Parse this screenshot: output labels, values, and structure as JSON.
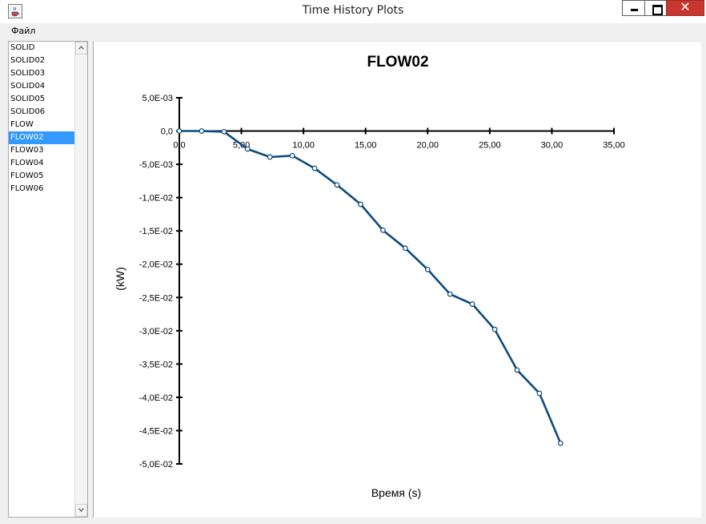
{
  "window": {
    "title": "Time History Plots",
    "icon": "java-cup-icon"
  },
  "menu": {
    "items": [
      {
        "label": "Файл"
      }
    ]
  },
  "list": {
    "items": [
      "SOLID",
      "SOLID02",
      "SOLID03",
      "SOLID04",
      "SOLID05",
      "SOLID06",
      "FLOW",
      "FLOW02",
      "FLOW03",
      "FLOW04",
      "FLOW05",
      "FLOW06"
    ],
    "selected": "FLOW02"
  },
  "colors": {
    "selection": "#3399ff",
    "series_line": "#0d4a7e",
    "close_button": "#c7372f"
  },
  "chart_data": {
    "type": "line",
    "title": "FLOW02",
    "xlabel": "Время (s)",
    "ylabel": "(kW)",
    "xlim": [
      0,
      35
    ],
    "ylim": [
      -0.05,
      0.005
    ],
    "x_ticks": [
      "0,0",
      "5,00",
      "10,00",
      "15,00",
      "20,00",
      "25,00",
      "30,00",
      "35,00"
    ],
    "x_tick_values": [
      0,
      5,
      10,
      15,
      20,
      25,
      30,
      35
    ],
    "y_ticks": [
      "5,0E-03",
      "0,0",
      "-5,0E-03",
      "-1,0E-02",
      "-1,5E-02",
      "-2,0E-02",
      "-2,5E-02",
      "-3,0E-02",
      "-3,5E-02",
      "-4,0E-02",
      "-4,5E-02",
      "-5,0E-02"
    ],
    "y_tick_values": [
      0.005,
      0,
      -0.005,
      -0.01,
      -0.015,
      -0.02,
      -0.025,
      -0.03,
      -0.035,
      -0.04,
      -0.045,
      -0.05
    ],
    "grid": false,
    "markers": "open-circle",
    "series": [
      {
        "x": [
          0,
          1.8,
          3.6,
          5.5,
          7.3,
          9.1,
          10.9,
          12.7,
          14.6,
          16.4,
          18.2,
          20.0,
          21.8,
          23.6,
          25.4,
          27.2,
          29.0,
          30.7
        ],
        "y": [
          0,
          0,
          -0.0001,
          -0.0027,
          -0.0039,
          -0.0037,
          -0.0056,
          -0.0081,
          -0.011,
          -0.0149,
          -0.0176,
          -0.0208,
          -0.0245,
          -0.026,
          -0.0298,
          -0.0359,
          -0.0394,
          -0.0469
        ]
      }
    ]
  }
}
